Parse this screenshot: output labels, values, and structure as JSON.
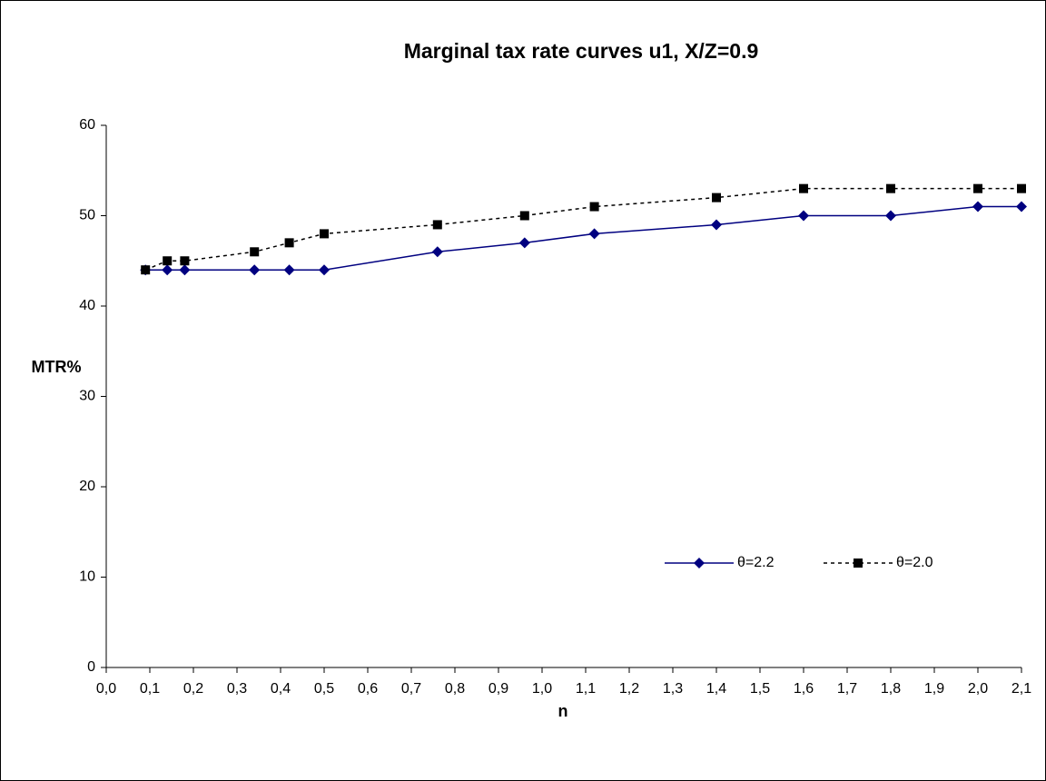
{
  "chart_data": {
    "type": "line",
    "title": "Marginal tax rate curves u1, X/Z=0.9",
    "x_label": "n",
    "y_label": "MTR%",
    "series": [
      {
        "name": "θ=2.2",
        "color": "#000080",
        "dash": "solid",
        "marker": "diamond",
        "x": [
          0.09,
          0.14,
          0.18,
          0.34,
          0.42,
          0.5,
          0.76,
          0.96,
          1.12,
          1.4,
          1.6,
          1.8,
          2.0,
          2.1
        ],
        "values": [
          44,
          44,
          44,
          44,
          44,
          44,
          46,
          47,
          48,
          49,
          50,
          50,
          51,
          51
        ]
      },
      {
        "name": "θ=2.0",
        "color": "#000000",
        "dash": "dotted",
        "marker": "square",
        "x": [
          0.09,
          0.14,
          0.18,
          0.34,
          0.42,
          0.5,
          0.76,
          0.96,
          1.12,
          1.4,
          1.6,
          1.8,
          2.0,
          2.1
        ],
        "values": [
          44,
          45,
          45,
          46,
          47,
          48,
          49,
          50,
          51,
          52,
          53,
          53,
          53,
          53
        ]
      }
    ],
    "xlim": [
      0,
      2.1
    ],
    "xticks": [
      {
        "value": 0,
        "label": "0,0"
      },
      {
        "value": 0.1,
        "label": "0,1"
      },
      {
        "value": 0.2,
        "label": "0,2"
      },
      {
        "value": 0.3,
        "label": "0,3"
      },
      {
        "value": 0.4,
        "label": "0,4"
      },
      {
        "value": 0.5,
        "label": "0,5"
      },
      {
        "value": 0.6,
        "label": "0,6"
      },
      {
        "value": 0.7,
        "label": "0,7"
      },
      {
        "value": 0.8,
        "label": "0,8"
      },
      {
        "value": 0.9,
        "label": "0,9"
      },
      {
        "value": 1.0,
        "label": "1,0"
      },
      {
        "value": 1.1,
        "label": "1,1"
      },
      {
        "value": 1.2,
        "label": "1,2"
      },
      {
        "value": 1.3,
        "label": "1,3"
      },
      {
        "value": 1.4,
        "label": "1,4"
      },
      {
        "value": 1.5,
        "label": "1,5"
      },
      {
        "value": 1.6,
        "label": "1,6"
      },
      {
        "value": 1.7,
        "label": "1,7"
      },
      {
        "value": 1.8,
        "label": "1,8"
      },
      {
        "value": 1.9,
        "label": "1,9"
      },
      {
        "value": 2.0,
        "label": "2,0"
      },
      {
        "value": 2.1,
        "label": "2,1"
      }
    ],
    "ylim": [
      0,
      60
    ],
    "yticks": [
      0,
      10,
      20,
      30,
      40,
      50,
      60
    ],
    "grid": false,
    "legend": "lower right"
  }
}
